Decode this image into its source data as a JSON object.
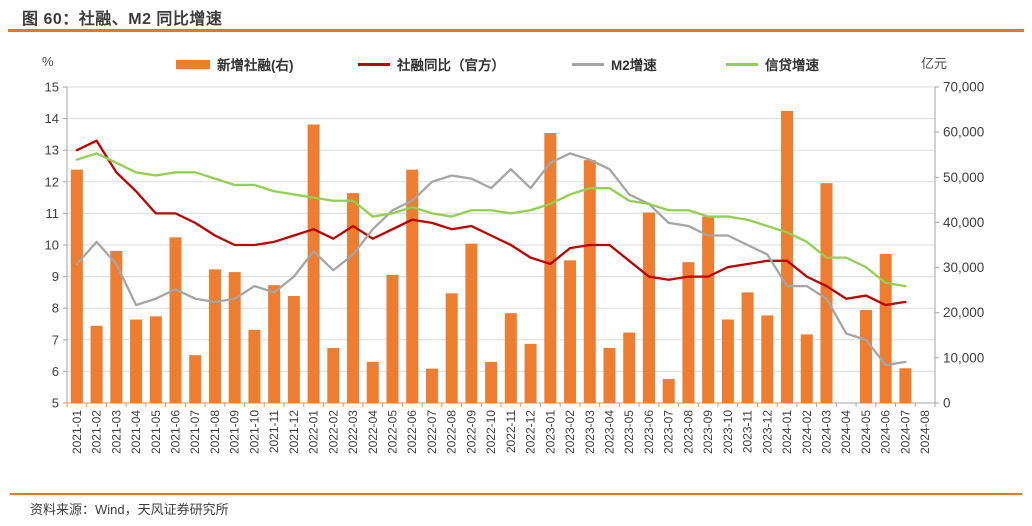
{
  "header": {
    "title": "图 60：社融、M2 同比增速"
  },
  "footer": {
    "source": "资料来源：Wind，天风证券研究所"
  },
  "chart_data": {
    "type": "bar+line combo",
    "legend_position": "top",
    "grid": true,
    "categories": [
      "2021-01",
      "2021-02",
      "2021-03",
      "2021-04",
      "2021-05",
      "2021-06",
      "2021-07",
      "2021-08",
      "2021-09",
      "2021-10",
      "2021-11",
      "2021-12",
      "2022-01",
      "2022-02",
      "2022-03",
      "2022-04",
      "2022-05",
      "2022-06",
      "2022-07",
      "2022-08",
      "2022-09",
      "2022-10",
      "2022-11",
      "2022-12",
      "2023-01",
      "2023-02",
      "2023-03",
      "2023-04",
      "2023-05",
      "2023-06",
      "2023-07",
      "2023-08",
      "2023-09",
      "2023-10",
      "2023-11",
      "2023-12",
      "2024-01",
      "2024-02",
      "2024-03",
      "2024-04",
      "2024-05",
      "2024-06",
      "2024-07",
      "2024-08"
    ],
    "bar_series": {
      "name": "新增社融(右)",
      "axis": "right",
      "color": "#ED7D31",
      "values": [
        51700,
        17100,
        33700,
        18500,
        19200,
        36700,
        10600,
        29600,
        29000,
        16200,
        26100,
        23700,
        61700,
        12200,
        46500,
        9100,
        28400,
        51700,
        7600,
        24300,
        35300,
        9100,
        19900,
        13100,
        59800,
        31600,
        53800,
        12200,
        15600,
        42200,
        5300,
        31200,
        41300,
        18500,
        24500,
        19400,
        64700,
        15200,
        48700,
        null,
        20600,
        33000,
        7700,
        null
      ]
    },
    "line_series": [
      {
        "name": "社融同比（官方）",
        "axis": "left",
        "color": "#C00000",
        "values": [
          13.0,
          13.3,
          12.3,
          11.7,
          11.0,
          11.0,
          10.7,
          10.3,
          10.0,
          10.0,
          10.1,
          10.3,
          10.5,
          10.2,
          10.6,
          10.2,
          10.5,
          10.8,
          10.7,
          10.5,
          10.6,
          10.3,
          10.0,
          9.6,
          9.4,
          9.9,
          10.0,
          10.0,
          9.5,
          9.0,
          8.9,
          9.0,
          9.0,
          9.3,
          9.4,
          9.5,
          9.5,
          9.0,
          8.7,
          8.3,
          8.4,
          8.1,
          8.2,
          null
        ]
      },
      {
        "name": "M2增速",
        "axis": "left",
        "color": "#A5A5A5",
        "values": [
          9.4,
          10.1,
          9.4,
          8.1,
          8.3,
          8.6,
          8.3,
          8.2,
          8.3,
          8.7,
          8.5,
          9.0,
          9.8,
          9.2,
          9.7,
          10.5,
          11.1,
          11.4,
          12.0,
          12.2,
          12.1,
          11.8,
          12.4,
          11.8,
          12.6,
          12.9,
          12.7,
          12.4,
          11.6,
          11.3,
          10.7,
          10.6,
          10.3,
          10.3,
          10.0,
          9.7,
          8.7,
          8.7,
          8.3,
          7.2,
          7.0,
          6.2,
          6.3,
          null
        ]
      },
      {
        "name": "信贷增速",
        "axis": "left",
        "color": "#92D050",
        "values": [
          12.7,
          12.9,
          12.6,
          12.3,
          12.2,
          12.3,
          12.3,
          12.1,
          11.9,
          11.9,
          11.7,
          11.6,
          11.5,
          11.4,
          11.4,
          10.9,
          11.0,
          11.2,
          11.0,
          10.9,
          11.1,
          11.1,
          11.0,
          11.1,
          11.3,
          11.6,
          11.8,
          11.8,
          11.4,
          11.3,
          11.1,
          11.1,
          10.9,
          10.9,
          10.8,
          10.6,
          10.4,
          10.1,
          9.6,
          9.6,
          9.3,
          8.8,
          8.7,
          null
        ]
      }
    ],
    "left_axis": {
      "unit": "%",
      "min": 5,
      "max": 15,
      "step": 1,
      "tick_labels": [
        "5",
        "6",
        "7",
        "8",
        "9",
        "10",
        "11",
        "12",
        "13",
        "14",
        "15"
      ]
    },
    "right_axis": {
      "unit": "亿元",
      "min": 0,
      "max": 70000,
      "step": 10000,
      "tick_labels": [
        "0",
        "10,000",
        "20,000",
        "30,000",
        "40,000",
        "50,000",
        "60,000",
        "70,000"
      ]
    }
  }
}
